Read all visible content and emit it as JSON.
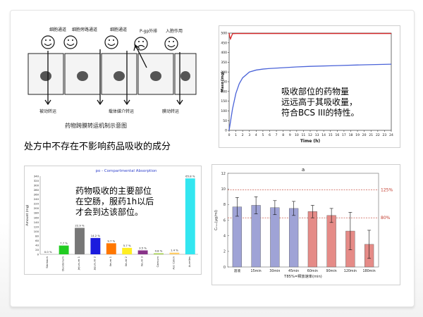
{
  "diagram": {
    "labels": [
      "细胞通道",
      "细胞旁路通道",
      "细胞通道",
      "P-gp外排",
      "入胞作用"
    ],
    "bottom_labels": [
      "被动转运",
      "载体媒介转运",
      "膜动转运"
    ],
    "caption": "药物跨膜转运机制示意图"
  },
  "left_text": "处方中不存在不影响药品吸收的成分",
  "mass_chart": {
    "annotation": [
      "吸收部位的药物量",
      "远远高于其吸收量，",
      "符合BCS III的特性。"
    ],
    "chart_data": {
      "type": "line",
      "xlabel": "Time (h)",
      "ylabel": "Mass (mg)",
      "xlim": [
        0,
        24
      ],
      "ylim": [
        0,
        500
      ],
      "xticks": [
        "0",
        "1",
        "2",
        "3",
        "4",
        "5",
        "6",
        "7",
        "8",
        "9",
        "10",
        "11",
        "12",
        "13",
        "14",
        "15",
        "16",
        "17",
        "18",
        "19",
        "20",
        "21",
        "22",
        "23",
        "24"
      ],
      "yticks": [
        "0",
        "50",
        "100",
        "150",
        "200",
        "250",
        "300",
        "350",
        "400",
        "450",
        "500"
      ],
      "series": [
        {
          "color": "#d62728",
          "x": [
            0,
            0.1,
            0.2,
            0.5,
            1,
            24
          ],
          "y": [
            500,
            480,
            470,
            497,
            498,
            498
          ]
        },
        {
          "color": "#4a63d8",
          "x": [
            0,
            0.5,
            1,
            1.5,
            2,
            3,
            4,
            5,
            6,
            8,
            10,
            12,
            16,
            20,
            24
          ],
          "y": [
            0,
            110,
            190,
            240,
            270,
            300,
            310,
            315,
            318,
            322,
            326,
            329,
            333,
            337,
            340
          ]
        }
      ]
    }
  },
  "compartment_chart": {
    "annotation": [
      "药物吸收的主要部位",
      "在空肠，服药1h以后",
      "才会到达该部位。"
    ],
    "chart_data": {
      "type": "bar",
      "title": "po - Compartmental Absorption",
      "ylabel": "Amount (mg)",
      "ylim": [
        0,
        340
      ],
      "yticks": [
        "0",
        "20",
        "40",
        "60",
        "80",
        "100",
        "120",
        "140",
        "160",
        "180",
        "200",
        "220",
        "240",
        "260",
        "280",
        "300",
        "320",
        "340"
      ],
      "categories": [
        "Stomach",
        "Duodenum",
        "Jejunum 1",
        "Jejunum 2",
        "Ileum 1",
        "Ileum 2",
        "Ileum 3",
        "Caecum",
        "Asc Colon",
        "Aurelles"
      ],
      "values": [
        0.0,
        7.7,
        22.9,
        14.2,
        9.7,
        5.7,
        3.5,
        0.8,
        1.4,
        65.8
      ],
      "value_labels": [
        "0.0 %",
        "7.7 %",
        "22.9 %",
        "14.2 %",
        "9.7 %",
        "5.7 %",
        "3.5 %",
        "0.8 %",
        "1.4 %",
        "65.8 %"
      ],
      "amounts": [
        0,
        38,
        115,
        71,
        48,
        28,
        17,
        4,
        7,
        330
      ],
      "colors": [
        "#c8c8c8",
        "#22cc22",
        "#777777",
        "#1b1bdd",
        "#ff7700",
        "#ffee22",
        "#883388",
        "#99cc33",
        "#ffcc66",
        "#33e6f0"
      ]
    }
  },
  "release_chart": {
    "chart_data": {
      "type": "bar",
      "title": "a",
      "xlabel": "T85%=释放速率(min)",
      "ylabel": "Cₘₐₓ(μg/ml)",
      "ylim": [
        0,
        12
      ],
      "yticks": [
        "0",
        "2",
        "4",
        "6",
        "8",
        "10",
        "12"
      ],
      "categories": [
        "溶液",
        "15min",
        "30min",
        "45min",
        "60min",
        "90min",
        "120min",
        "180min"
      ],
      "values": [
        7.7,
        7.9,
        7.6,
        7.5,
        7.1,
        6.6,
        4.6,
        2.9
      ],
      "errors": [
        1.2,
        1.1,
        0.9,
        0.9,
        0.8,
        0.9,
        2.4,
        1.8
      ],
      "colors": [
        "#9fa3d6",
        "#9fa3d6",
        "#9fa3d6",
        "#9fa3d6",
        "#e58b87",
        "#e58b87",
        "#e58b87",
        "#e58b87"
      ],
      "reference_lines": [
        {
          "label": "125%",
          "y": 9.9
        },
        {
          "label": "80%",
          "y": 6.3
        }
      ]
    }
  }
}
